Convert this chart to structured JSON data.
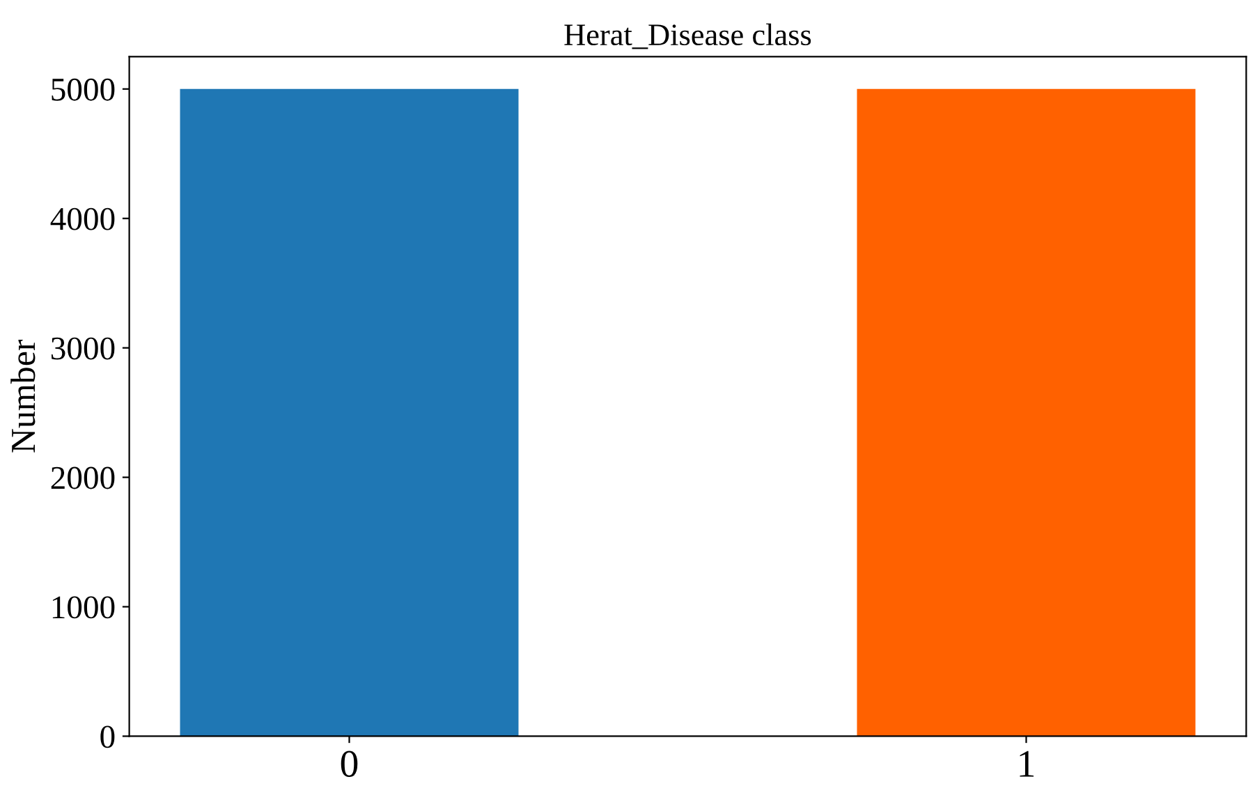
{
  "chart_data": {
    "type": "bar",
    "title": "Herat_Disease class",
    "ylabel": "Number",
    "categories": [
      "0",
      "1"
    ],
    "values": [
      5000,
      5000
    ],
    "colors": [
      "#1f77b4",
      "#ff6100"
    ],
    "ylim": [
      0,
      5250
    ],
    "yticks": [
      0,
      1000,
      2000,
      3000,
      4000,
      5000
    ],
    "grid": false,
    "legend": false
  }
}
